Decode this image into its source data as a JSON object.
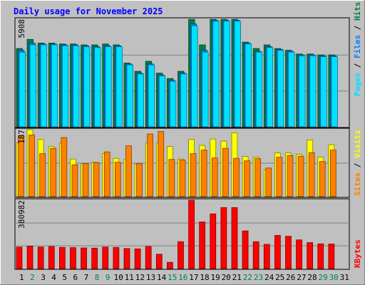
{
  "chart_data": {
    "type": "bar",
    "title": "Daily usage for November 2025",
    "categories": [
      "1",
      "2",
      "3",
      "4",
      "5",
      "6",
      "7",
      "8",
      "9",
      "10",
      "11",
      "12",
      "13",
      "14",
      "15",
      "16",
      "17",
      "18",
      "19",
      "20",
      "21",
      "22",
      "23",
      "24",
      "25",
      "26",
      "27",
      "28",
      "29",
      "30",
      "31"
    ],
    "weekend_days": [
      "2",
      "8",
      "9",
      "15",
      "16",
      "22",
      "23",
      "29",
      "30"
    ],
    "panels": [
      {
        "id": "traffic",
        "ymax_label": "5908",
        "ymax": 5908,
        "axis_label": {
          "pages": "Pages",
          "files": "Files",
          "hits": "Hits",
          "sep": " / "
        },
        "series": [
          {
            "name": "Hits",
            "color": "#008040",
            "values": [
              4300,
              4800,
              4600,
              4600,
              4550,
              4550,
              4500,
              4500,
              4550,
              4500,
              3500,
              3050,
              3600,
              2950,
              2650,
              3050,
              5900,
              4500,
              5900,
              5900,
              5900,
              4650,
              4300,
              4500,
              4300,
              4200,
              4000,
              4000,
              3950,
              3950,
              0
            ]
          },
          {
            "name": "Files",
            "color": "#0080FF",
            "values": [
              4200,
              4600,
              4550,
              4550,
              4500,
              4500,
              4450,
              4400,
              4450,
              4450,
              3450,
              2950,
              3450,
              2850,
              2550,
              2950,
              5650,
              4200,
              5850,
              5850,
              5850,
              4600,
              4150,
              4400,
              4250,
              4150,
              3950,
              3950,
              3900,
              3900,
              0
            ]
          },
          {
            "name": "Pages",
            "color": "#00E0FF",
            "values": [
              4100,
              4500,
              4500,
              4500,
              4450,
              4450,
              4400,
              4350,
              4400,
              4400,
              3400,
              2900,
              3400,
              2800,
              2500,
              2900,
              5550,
              4100,
              5800,
              5800,
              5800,
              4550,
              4100,
              4350,
              4200,
              4100,
              3900,
              3900,
              3850,
              3850,
              0
            ]
          }
        ]
      },
      {
        "id": "visits",
        "ymax_label": "187",
        "ymax": 187,
        "axis_label": {
          "sites": "Sites",
          "visits": "Visits",
          "sep": " / "
        },
        "series": [
          {
            "name": "Visits",
            "color": "#FFFF00",
            "values": [
              150,
              187,
              160,
              140,
              150,
              105,
              92,
              96,
              120,
              107,
              105,
              90,
              150,
              150,
              140,
              105,
              160,
              143,
              161,
              155,
              178,
              112,
              110,
              75,
              122,
              122,
              118,
              158,
              110,
              145,
              0
            ]
          },
          {
            "name": "Sites",
            "color": "#FF8000",
            "values": [
              170,
              172,
              120,
              135,
              165,
              89,
              92,
              95,
              125,
              96,
              142,
              92,
              175,
              182,
              104,
              102,
              120,
              130,
              108,
              135,
              107,
              100,
              106,
              80,
              110,
              115,
              113,
              123,
              98,
              130,
              0
            ]
          }
        ]
      },
      {
        "id": "kbytes",
        "ymax_label": "380982",
        "ymax": 380982,
        "axis_label": {
          "kbytes": "KBytes"
        },
        "series": [
          {
            "name": "KBytes",
            "color": "#FF0000",
            "values": [
              120000,
              125000,
              120000,
              123000,
              118000,
              117000,
              115000,
              114000,
              120000,
              118000,
              112000,
              110000,
              123000,
              80000,
              35000,
              150000,
              380982,
              260000,
              305000,
              340000,
              340000,
              210000,
              150000,
              135000,
              185000,
              180000,
              160000,
              145000,
              138000,
              137000,
              0
            ]
          }
        ]
      }
    ]
  }
}
